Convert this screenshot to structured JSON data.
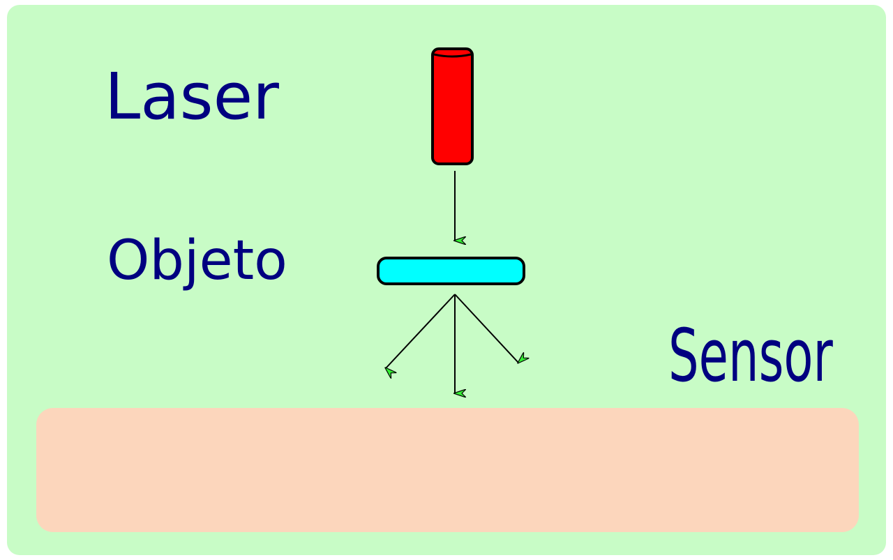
{
  "labels": {
    "laser": "Laser",
    "object": "Objeto",
    "sensor": "Sensor"
  },
  "colors": {
    "background": "#c8fcc6",
    "sensor_panel": "#fcd6bc",
    "laser_body": "#ff0000",
    "object_body": "#00ffff",
    "arrow_head": "#33ee33",
    "outline": "#000000",
    "text": "#000080"
  }
}
